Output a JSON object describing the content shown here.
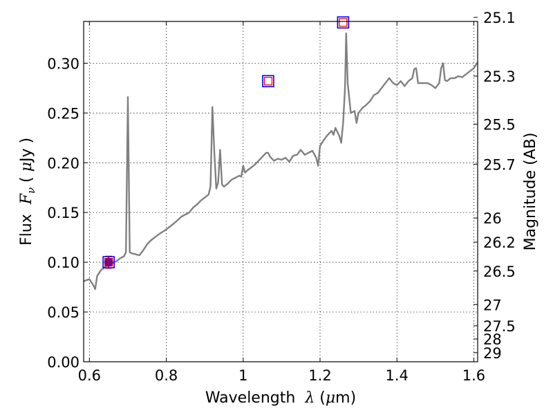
{
  "chart_data": {
    "type": "line",
    "xlabel": "Wavelength",
    "xlabel_symbol": "λ",
    "xlabel_unit_open": " (",
    "xlabel_unit_mu": "μ",
    "xlabel_unit_close": "m)",
    "ylabel": "Flux",
    "ylabel_symbol": "F",
    "ylabel_subscript": "ν",
    "ylabel_unit_open": " ( ",
    "ylabel_unit_mu": "μ",
    "ylabel_unit_close": "Jy )",
    "y2label": "Magnitude (AB)",
    "xlim": [
      0.585,
      1.61
    ],
    "ylim": [
      0.0,
      0.342
    ],
    "grid": true,
    "x_ticks": [
      0.6,
      0.8,
      1.0,
      1.2,
      1.4,
      1.6
    ],
    "x_tick_labels": [
      "0.6",
      "0.8",
      "1",
      "1.2",
      "1.4",
      "1.6"
    ],
    "y_ticks": [
      0.0,
      0.05,
      0.1,
      0.15,
      0.2,
      0.25,
      0.3
    ],
    "y_tick_labels": [
      "0.00",
      "0.05",
      "0.10",
      "0.15",
      "0.20",
      "0.25",
      "0.30"
    ],
    "y2_tick_labels": [
      "25.1",
      "25.3",
      "25.5",
      "25.7",
      "26",
      "26.2",
      "26.5",
      "27",
      "27.5",
      "28",
      "29"
    ],
    "y2_tick_fluxes": [
      0.3461,
      0.2871,
      0.2388,
      0.1985,
      0.1445,
      0.1202,
      0.0912,
      0.0575,
      0.0362,
      0.0229,
      0.0091
    ],
    "series": [
      {
        "type": "line",
        "color": "#808080",
        "points": [
          [
            0.585,
            0.081
          ],
          [
            0.6,
            0.083
          ],
          [
            0.61,
            0.077
          ],
          [
            0.615,
            0.073
          ],
          [
            0.62,
            0.086
          ],
          [
            0.63,
            0.092
          ],
          [
            0.64,
            0.095
          ],
          [
            0.65,
            0.098
          ],
          [
            0.66,
            0.099
          ],
          [
            0.67,
            0.101
          ],
          [
            0.68,
            0.104
          ],
          [
            0.69,
            0.106
          ],
          [
            0.695,
            0.11
          ],
          [
            0.7,
            0.266
          ],
          [
            0.705,
            0.11
          ],
          [
            0.71,
            0.109
          ],
          [
            0.72,
            0.108
          ],
          [
            0.73,
            0.107
          ],
          [
            0.74,
            0.112
          ],
          [
            0.75,
            0.118
          ],
          [
            0.76,
            0.122
          ],
          [
            0.78,
            0.128
          ],
          [
            0.8,
            0.133
          ],
          [
            0.82,
            0.139
          ],
          [
            0.84,
            0.146
          ],
          [
            0.86,
            0.15
          ],
          [
            0.87,
            0.155
          ],
          [
            0.88,
            0.158
          ],
          [
            0.89,
            0.162
          ],
          [
            0.9,
            0.165
          ],
          [
            0.91,
            0.168
          ],
          [
            0.915,
            0.176
          ],
          [
            0.92,
            0.256
          ],
          [
            0.925,
            0.21
          ],
          [
            0.93,
            0.174
          ],
          [
            0.935,
            0.18
          ],
          [
            0.94,
            0.213
          ],
          [
            0.945,
            0.178
          ],
          [
            0.95,
            0.176
          ],
          [
            0.96,
            0.179
          ],
          [
            0.97,
            0.183
          ],
          [
            0.98,
            0.185
          ],
          [
            0.99,
            0.187
          ],
          [
            0.995,
            0.186
          ],
          [
            1.0,
            0.197
          ],
          [
            1.005,
            0.19
          ],
          [
            1.01,
            0.192
          ],
          [
            1.02,
            0.195
          ],
          [
            1.03,
            0.198
          ],
          [
            1.04,
            0.202
          ],
          [
            1.05,
            0.206
          ],
          [
            1.06,
            0.21
          ],
          [
            1.065,
            0.21
          ],
          [
            1.07,
            0.206
          ],
          [
            1.08,
            0.202
          ],
          [
            1.09,
            0.204
          ],
          [
            1.1,
            0.203
          ],
          [
            1.11,
            0.205
          ],
          [
            1.12,
            0.201
          ],
          [
            1.13,
            0.207
          ],
          [
            1.14,
            0.208
          ],
          [
            1.15,
            0.213
          ],
          [
            1.16,
            0.208
          ],
          [
            1.17,
            0.21
          ],
          [
            1.18,
            0.212
          ],
          [
            1.19,
            0.205
          ],
          [
            1.195,
            0.197
          ],
          [
            1.2,
            0.217
          ],
          [
            1.21,
            0.223
          ],
          [
            1.22,
            0.228
          ],
          [
            1.23,
            0.232
          ],
          [
            1.235,
            0.228
          ],
          [
            1.24,
            0.235
          ],
          [
            1.25,
            0.227
          ],
          [
            1.255,
            0.22
          ],
          [
            1.26,
            0.24
          ],
          [
            1.265,
            0.275
          ],
          [
            1.268,
            0.33
          ],
          [
            1.272,
            0.28
          ],
          [
            1.28,
            0.25
          ],
          [
            1.29,
            0.252
          ],
          [
            1.295,
            0.24
          ],
          [
            1.3,
            0.25
          ],
          [
            1.31,
            0.255
          ],
          [
            1.32,
            0.258
          ],
          [
            1.33,
            0.262
          ],
          [
            1.34,
            0.268
          ],
          [
            1.35,
            0.27
          ],
          [
            1.36,
            0.275
          ],
          [
            1.37,
            0.28
          ],
          [
            1.38,
            0.285
          ],
          [
            1.39,
            0.28
          ],
          [
            1.4,
            0.278
          ],
          [
            1.41,
            0.282
          ],
          [
            1.42,
            0.277
          ],
          [
            1.43,
            0.282
          ],
          [
            1.44,
            0.285
          ],
          [
            1.445,
            0.294
          ],
          [
            1.45,
            0.295
          ],
          [
            1.455,
            0.28
          ],
          [
            1.46,
            0.28
          ],
          [
            1.47,
            0.28
          ],
          [
            1.48,
            0.28
          ],
          [
            1.49,
            0.278
          ],
          [
            1.5,
            0.275
          ],
          [
            1.51,
            0.28
          ],
          [
            1.515,
            0.295
          ],
          [
            1.52,
            0.3
          ],
          [
            1.525,
            0.283
          ],
          [
            1.53,
            0.282
          ],
          [
            1.54,
            0.285
          ],
          [
            1.55,
            0.285
          ],
          [
            1.56,
            0.287
          ],
          [
            1.57,
            0.286
          ],
          [
            1.58,
            0.289
          ],
          [
            1.59,
            0.292
          ],
          [
            1.6,
            0.295
          ],
          [
            1.61,
            0.301
          ]
        ]
      },
      {
        "type": "markers",
        "marker": "open-square",
        "color": "#0000ff",
        "points": [
          [
            0.65,
            0.1
          ],
          [
            1.065,
            0.282
          ],
          [
            1.26,
            0.341
          ]
        ]
      },
      {
        "type": "markers",
        "marker": "open-square-small",
        "color": "#ff0000",
        "points": [
          [
            0.65,
            0.1
          ],
          [
            1.065,
            0.282
          ],
          [
            1.26,
            0.341
          ]
        ]
      },
      {
        "type": "errorbar",
        "color": "#800080",
        "points": [
          {
            "x": 0.65,
            "y": 0.1,
            "yerr": 0.006
          }
        ]
      }
    ]
  }
}
